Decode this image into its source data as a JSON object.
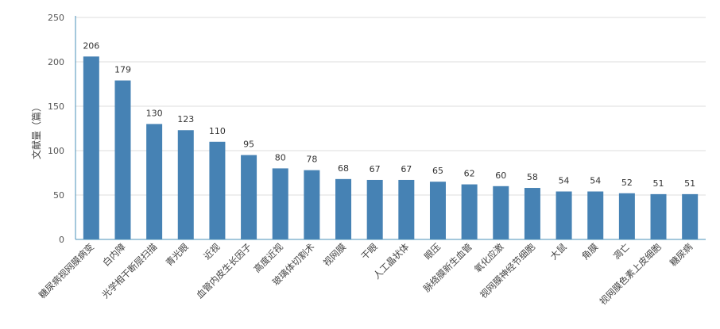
{
  "chart_data": {
    "type": "bar",
    "ylabel": "文献量（篇）",
    "ylim": [
      0,
      250
    ],
    "yticks": [
      0,
      50,
      100,
      150,
      200,
      250
    ],
    "grid": true,
    "categories": [
      "糖尿病视网膜病变",
      "白内障",
      "光学相干断层扫描",
      "青光眼",
      "近视",
      "血管内皮生长因子",
      "高度近视",
      "玻璃体切割术",
      "视网膜",
      "干眼",
      "人工晶状体",
      "眼压",
      "脉络膜新生血管",
      "氧化应激",
      "视网膜神经节细胞",
      "大鼠",
      "角膜",
      "凋亡",
      "视网膜色素上皮细胞",
      "糖尿病"
    ],
    "values": [
      206,
      179,
      130,
      123,
      110,
      95,
      80,
      78,
      68,
      67,
      67,
      65,
      62,
      60,
      58,
      54,
      54,
      52,
      51,
      51
    ],
    "bar_color": "#4682b4",
    "axis_color": "#4a90b8",
    "grid_color": "#dcdcdc"
  }
}
